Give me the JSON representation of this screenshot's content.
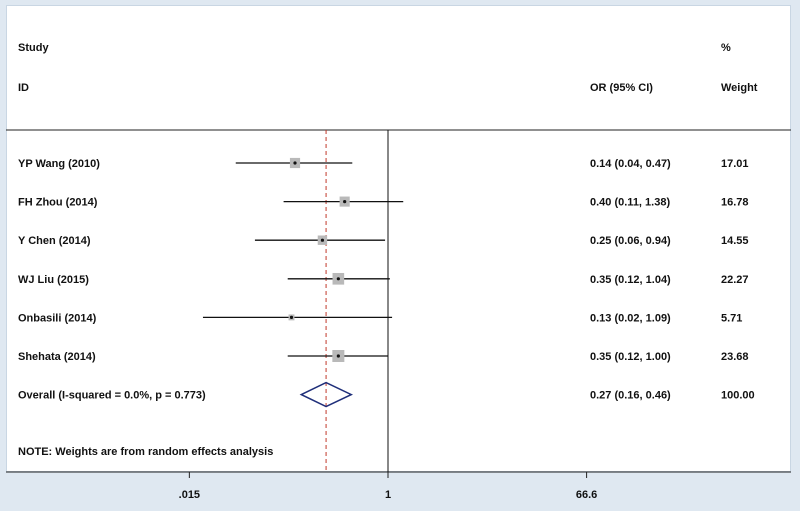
{
  "header": {
    "study_label": "Study",
    "id_label": "ID",
    "pct_label": "%",
    "or_label": "OR (95% CI)",
    "weight_label": "Weight"
  },
  "note": "NOTE: Weights are from random effects analysis",
  "colors": {
    "background": "#dfe8f1",
    "plot_bg": "#ffffff",
    "diamond": "#1f2f7a",
    "ref_dashed": "#c0392b",
    "box": "#b9b9b9"
  },
  "chart_data": {
    "type": "forest",
    "scale": "log",
    "x_ticks": [
      {
        "value": 0.015,
        "label": ".015"
      },
      {
        "value": 1,
        "label": "1"
      },
      {
        "value": 66.6,
        "label": "66.6"
      }
    ],
    "reference_line": 1,
    "overall_dashed_line": 0.27,
    "studies": [
      {
        "name": "YP Wang (2010)",
        "or": 0.14,
        "lo": 0.04,
        "hi": 0.47,
        "ci_text": "0.14 (0.04, 0.47)",
        "weight": "17.01"
      },
      {
        "name": "FH Zhou (2014)",
        "or": 0.4,
        "lo": 0.11,
        "hi": 1.38,
        "ci_text": "0.40 (0.11, 1.38)",
        "weight": "16.78"
      },
      {
        "name": "Y Chen (2014)",
        "or": 0.25,
        "lo": 0.06,
        "hi": 0.94,
        "ci_text": "0.25 (0.06, 0.94)",
        "weight": "14.55"
      },
      {
        "name": "WJ Liu (2015)",
        "or": 0.35,
        "lo": 0.12,
        "hi": 1.04,
        "ci_text": "0.35 (0.12, 1.04)",
        "weight": "22.27"
      },
      {
        "name": "Onbasili (2014)",
        "or": 0.13,
        "lo": 0.02,
        "hi": 1.09,
        "ci_text": "0.13 (0.02, 1.09)",
        "weight": "5.71"
      },
      {
        "name": "Shehata (2014)",
        "or": 0.35,
        "lo": 0.12,
        "hi": 1.0,
        "ci_text": "0.35 (0.12, 1.00)",
        "weight": "23.68"
      }
    ],
    "overall": {
      "name": "Overall  (I-squared = 0.0%, p = 0.773)",
      "or": 0.27,
      "lo": 0.16,
      "hi": 0.46,
      "ci_text": "0.27 (0.16, 0.46)",
      "weight": "100.00"
    }
  }
}
